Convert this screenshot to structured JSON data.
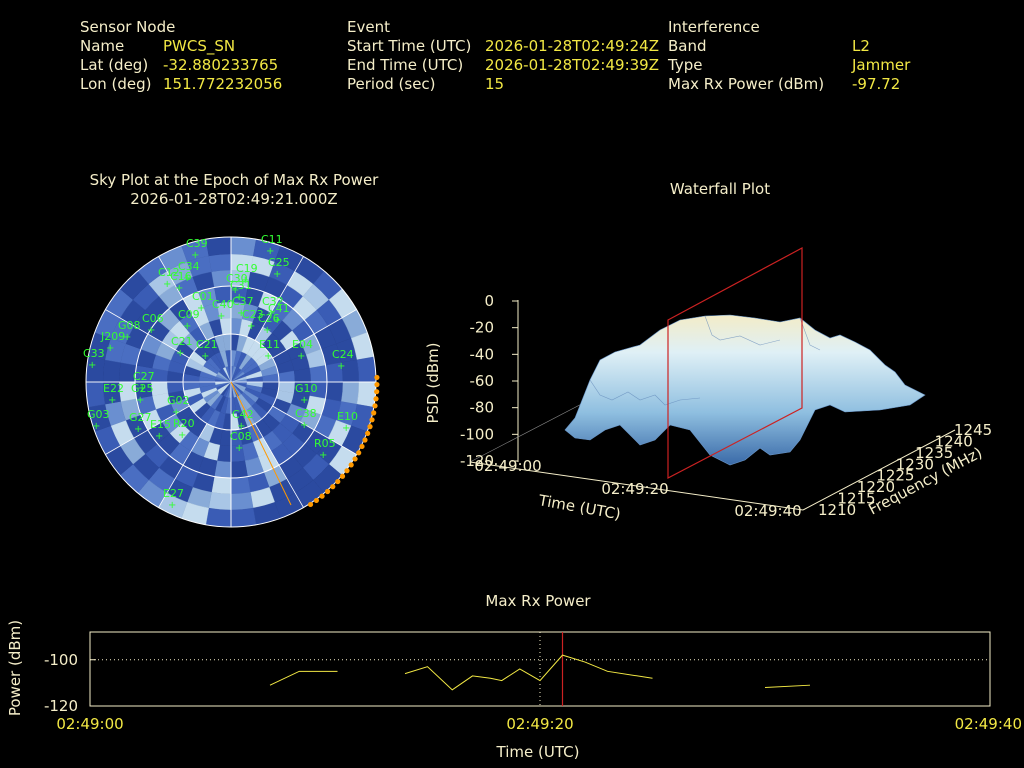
{
  "header": {
    "sensor": {
      "heading": "Sensor Node",
      "name_label": "Name",
      "name_value": "PWCS_SN",
      "lat_label": "Lat (deg)",
      "lat_value": "-32.880233765",
      "lon_label": "Lon (deg)",
      "lon_value": "151.772232056"
    },
    "event": {
      "heading": "Event",
      "start_label": "Start Time (UTC)",
      "start_value": "2026-01-28T02:49:24Z",
      "end_label": "End Time (UTC)",
      "end_value": "2026-01-28T02:49:39Z",
      "period_label": "Period (sec)",
      "period_value": "15"
    },
    "interference": {
      "heading": "Interference",
      "band_label": "Band",
      "band_value": "L2",
      "type_label": "Type",
      "type_value": "Jammer",
      "power_label": "Max Rx Power (dBm)",
      "power_value": "-97.72"
    }
  },
  "colors": {
    "label": "#f5eec9",
    "value": "#f2e844",
    "sat": "#33ff33",
    "track": "#ff9900",
    "marker": "#cc2222",
    "sky_dark": "#2f4fa8",
    "sky_light": "#b8d4f0"
  },
  "chart_data": [
    {
      "type": "polar-skyplot",
      "title": "Sky Plot at the Epoch of Max Rx Power",
      "subtitle": "2026-01-28T02:49:21.000Z",
      "satellites": [
        "C39",
        "C11",
        "C25",
        "C19",
        "C34",
        "C30",
        "C12",
        "C31",
        "C16",
        "C01",
        "C09",
        "C26",
        "G08",
        "C06",
        "J209",
        "C33",
        "C40",
        "C37",
        "C32",
        "C41",
        "C23",
        "E11",
        "E04",
        "C24",
        "C21",
        "C21",
        "C27",
        "G25",
        "G10",
        "E22",
        "G02",
        "G03",
        "G27",
        "E15",
        "C42",
        "E10",
        "C38",
        "R05",
        "E27",
        "R20",
        "C08"
      ],
      "interference_direction": "south-southeast",
      "track_points": 22
    },
    {
      "type": "surface",
      "title": "Waterfall Plot",
      "xlabel": "Time (UTC)",
      "ylabel": "Frequency (MHz)",
      "zlabel": "PSD (dBm)",
      "x_ticks": [
        "02:49:00",
        "02:49:20",
        "02:49:40"
      ],
      "y_ticks": [
        "1210",
        "1215",
        "1220",
        "1225",
        "1230",
        "1235",
        "1240",
        "1245"
      ],
      "z_ticks": [
        "0",
        "-20",
        "-40",
        "-60",
        "-80",
        "-100",
        "-120"
      ],
      "zlim": [
        -120,
        0
      ],
      "marker_time": "02:49:21"
    },
    {
      "type": "line",
      "title": "Max Rx Power",
      "xlabel": "Time (UTC)",
      "ylabel": "Power (dBm)",
      "x_ticks": [
        "02:49:00",
        "02:49:20",
        "02:49:40"
      ],
      "y_ticks": [
        "-100",
        "-120"
      ],
      "xlim": [
        0,
        40
      ],
      "ylim": [
        -120,
        -88
      ],
      "reference_line": -100,
      "marker_time": 21,
      "current_time": 20,
      "series": [
        {
          "segments": [
            [
              [
                8,
                -111
              ],
              [
                9.3,
                -105
              ],
              [
                11,
                -105
              ]
            ],
            [
              [
                14,
                -106
              ],
              [
                15,
                -103
              ],
              [
                16.1,
                -113
              ],
              [
                17,
                -107
              ],
              [
                17.8,
                -108
              ],
              [
                18.3,
                -109
              ],
              [
                19.1,
                -104
              ],
              [
                20,
                -109
              ],
              [
                21,
                -98
              ],
              [
                22,
                -101
              ],
              [
                23,
                -105
              ],
              [
                25,
                -108
              ]
            ],
            [
              [
                30,
                -112
              ],
              [
                32,
                -111
              ]
            ]
          ]
        }
      ]
    }
  ]
}
